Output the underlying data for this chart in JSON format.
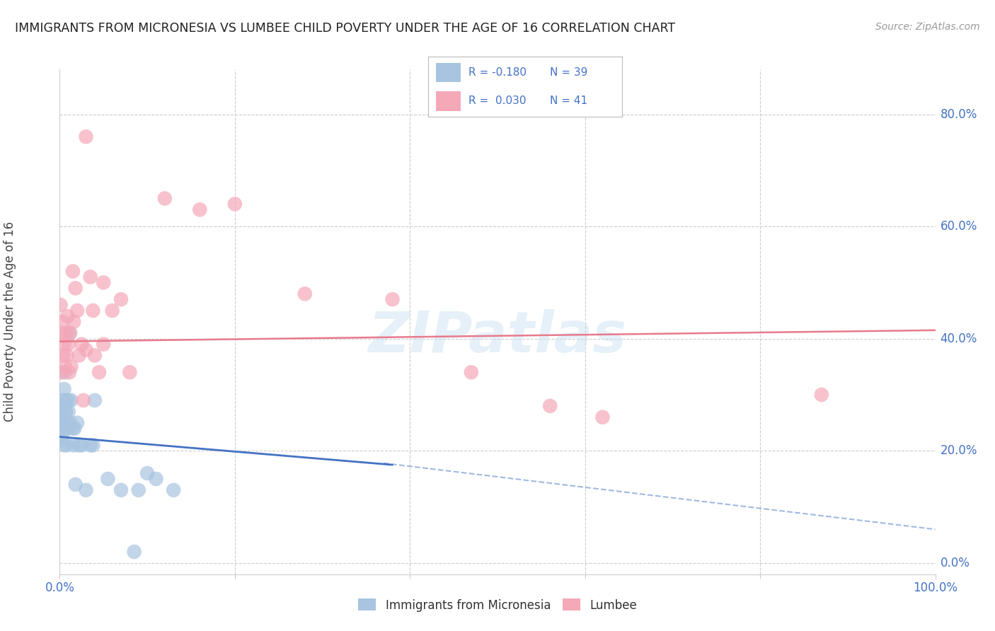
{
  "title": "IMMIGRANTS FROM MICRONESIA VS LUMBEE CHILD POVERTY UNDER THE AGE OF 16 CORRELATION CHART",
  "source": "Source: ZipAtlas.com",
  "ylabel": "Child Poverty Under the Age of 16",
  "xlim": [
    0.0,
    1.0
  ],
  "ylim": [
    -0.02,
    0.88
  ],
  "yticks_right": [
    0.0,
    0.2,
    0.4,
    0.6,
    0.8
  ],
  "ytick_right_labels": [
    "0.0%",
    "20.0%",
    "40.0%",
    "60.0%",
    "80.0%"
  ],
  "grid_color": "#cccccc",
  "background_color": "#ffffff",
  "watermark_text": "ZIPatlas",
  "color_blue": "#a8c4e0",
  "color_pink": "#f4a8b8",
  "line_blue": "#4472c4",
  "line_pink": "#e87a8c",
  "text_blue": "#4472c4",
  "legend_blue_r": "R = -0.180",
  "legend_blue_n": "N = 39",
  "legend_pink_r": "R =  0.030",
  "legend_pink_n": "N = 41",
  "mic_x": [
    0.001,
    0.002,
    0.002,
    0.003,
    0.003,
    0.004,
    0.004,
    0.005,
    0.005,
    0.006,
    0.006,
    0.007,
    0.007,
    0.008,
    0.008,
    0.009,
    0.01,
    0.01,
    0.011,
    0.012,
    0.013,
    0.015,
    0.016,
    0.017,
    0.018,
    0.02,
    0.022,
    0.025,
    0.03,
    0.035,
    0.038,
    0.04,
    0.055,
    0.07,
    0.09,
    0.11,
    0.13,
    0.1,
    0.085
  ],
  "mic_y": [
    0.24,
    0.26,
    0.22,
    0.28,
    0.23,
    0.29,
    0.25,
    0.31,
    0.21,
    0.27,
    0.34,
    0.27,
    0.29,
    0.25,
    0.21,
    0.24,
    0.27,
    0.29,
    0.41,
    0.25,
    0.29,
    0.24,
    0.21,
    0.24,
    0.14,
    0.25,
    0.21,
    0.21,
    0.13,
    0.21,
    0.21,
    0.29,
    0.15,
    0.13,
    0.13,
    0.15,
    0.13,
    0.16,
    0.02
  ],
  "lum_x": [
    0.001,
    0.002,
    0.003,
    0.004,
    0.004,
    0.005,
    0.006,
    0.007,
    0.008,
    0.009,
    0.01,
    0.011,
    0.012,
    0.013,
    0.015,
    0.016,
    0.018,
    0.02,
    0.022,
    0.025,
    0.027,
    0.03,
    0.035,
    0.038,
    0.04,
    0.045,
    0.05,
    0.06,
    0.07,
    0.08,
    0.12,
    0.16,
    0.2,
    0.28,
    0.38,
    0.47,
    0.56,
    0.62,
    0.87,
    0.03,
    0.05
  ],
  "lum_y": [
    0.46,
    0.34,
    0.43,
    0.37,
    0.41,
    0.39,
    0.35,
    0.41,
    0.37,
    0.44,
    0.39,
    0.34,
    0.41,
    0.35,
    0.52,
    0.43,
    0.49,
    0.45,
    0.37,
    0.39,
    0.29,
    0.38,
    0.51,
    0.45,
    0.37,
    0.34,
    0.39,
    0.45,
    0.47,
    0.34,
    0.65,
    0.63,
    0.64,
    0.48,
    0.47,
    0.34,
    0.28,
    0.26,
    0.3,
    0.76,
    0.5
  ]
}
